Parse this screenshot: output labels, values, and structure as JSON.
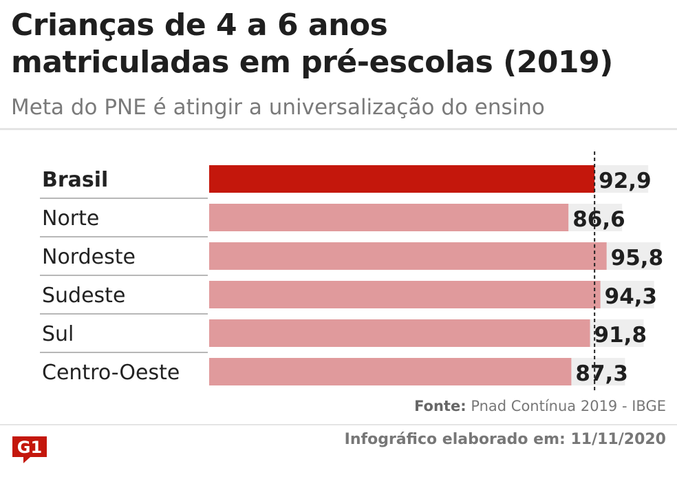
{
  "header": {
    "title_line1": "Crianças de 4 a 6 anos",
    "title_line2": "matriculadas em pré-escolas (2019)",
    "subtitle": "Meta do PNE é atingir a universalização do ensino"
  },
  "chart_data": {
    "type": "bar",
    "orientation": "horizontal",
    "categories": [
      "Brasil",
      "Norte",
      "Nordeste",
      "Sudeste",
      "Sul",
      "Centro-Oeste"
    ],
    "values": [
      92.9,
      86.6,
      95.8,
      94.3,
      91.8,
      87.3
    ],
    "value_labels": [
      "92,9",
      "86,6",
      "95,8",
      "94,3",
      "91,8",
      "87,3"
    ],
    "highlight": "Brasil",
    "xlim": [
      0,
      100
    ],
    "reference_line": 92.9,
    "grid": false,
    "legend": "none"
  },
  "colors": {
    "highlight_bar": "#c4170c",
    "bar": "#e09a9c",
    "track": "#eeeeee",
    "reference_line": "#222222"
  },
  "footer": {
    "source_label": "Fonte:",
    "source_text": "Pnad Contínua 2019 - IBGE",
    "credit": "Infográfico elaborado em: 11/11/2020",
    "logo_text": "G1"
  }
}
